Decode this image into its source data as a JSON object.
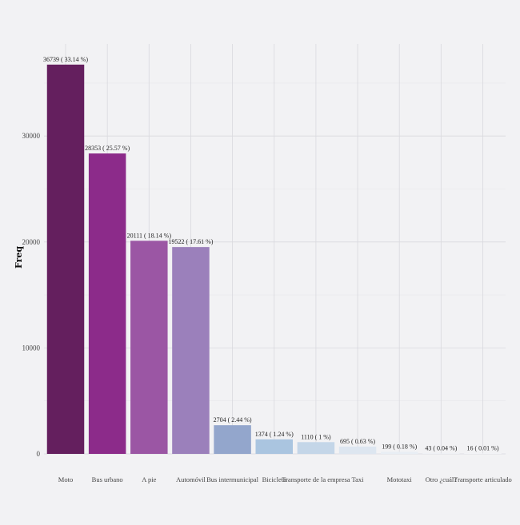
{
  "chart_data": {
    "type": "bar",
    "title": "",
    "xlabel": "",
    "ylabel": "Freq",
    "ylim": [
      0,
      37500
    ],
    "y_ticks": [
      0,
      10000,
      20000,
      30000
    ],
    "y_tick_labels": [
      "0",
      "10000",
      "20000",
      "30000"
    ],
    "grid": true,
    "legend": "none",
    "categories": [
      "Moto",
      "Bus urbano",
      "A pie",
      "Automóvil",
      "Bus intermunicipal",
      "Bicicleta",
      "Transporte de la empresa",
      "Taxi",
      "Mototaxi",
      "Otro ¿cuál?",
      "Transporte articulado"
    ],
    "values": [
      36739,
      28353,
      20111,
      19522,
      2704,
      1374,
      1110,
      695,
      199,
      43,
      16
    ],
    "data_labels": [
      "36739 ( 33.14 %)",
      "28353 ( 25.57 %)",
      "20111 ( 18.14 %)",
      "19522 ( 17.61 %)",
      "2704 ( 2.44 %)",
      "1374 ( 1.24 %)",
      "1110 ( 1 %)",
      "695 ( 0.63 %)",
      "199 ( 0.18 %)",
      "43 ( 0.04 %)",
      "16 ( 0.01 %)"
    ],
    "colors": [
      "#641f5e",
      "#8c2b8a",
      "#9b56a4",
      "#9b80bb",
      "#93a6cc",
      "#aac5e0",
      "#c4d6e8",
      "#dde6f0",
      "#e8eef4",
      "#edf1f6",
      "#f2f4f8"
    ]
  }
}
